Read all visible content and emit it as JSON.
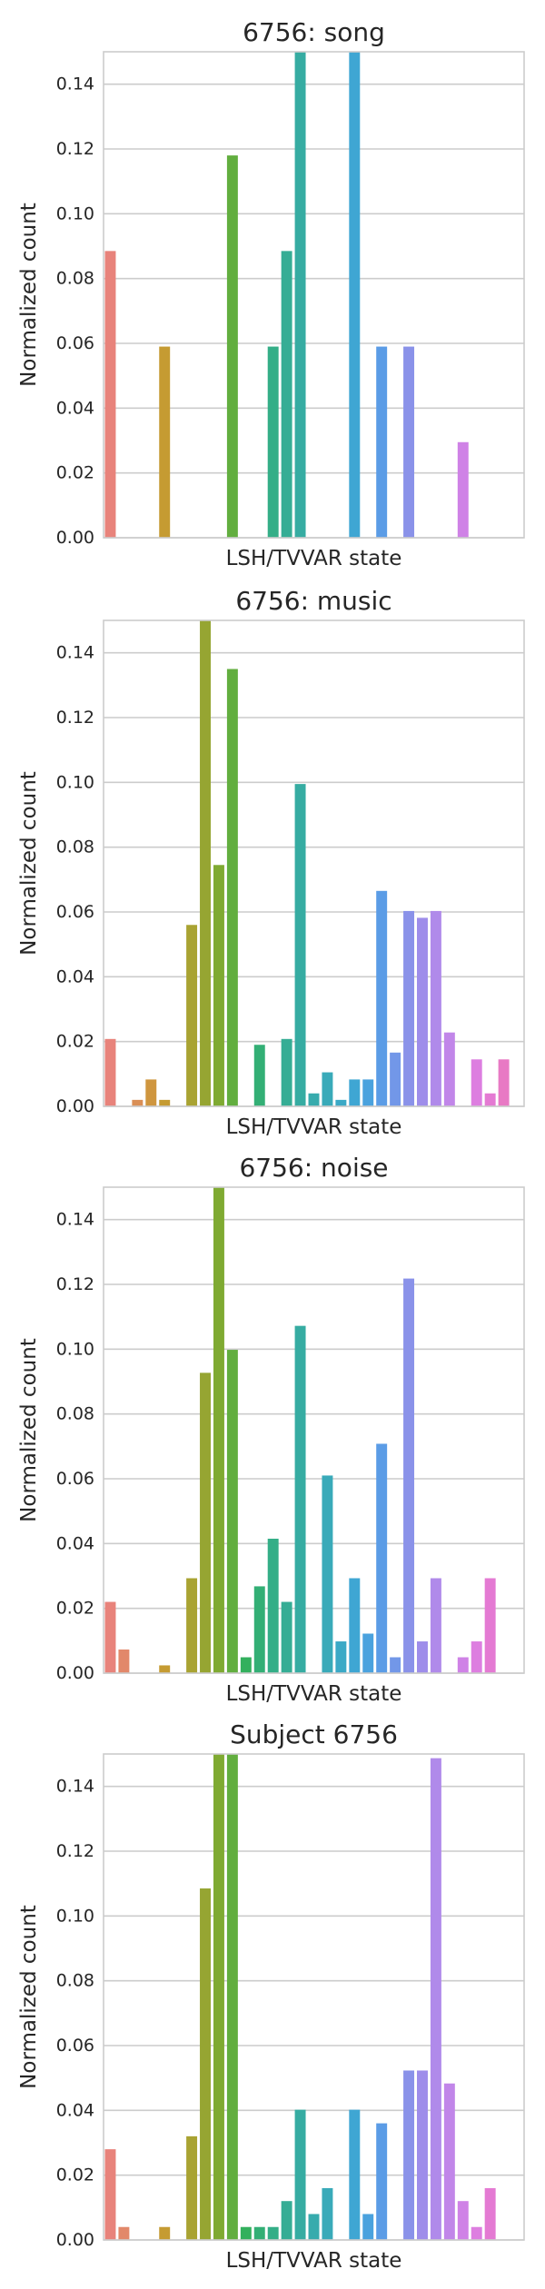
{
  "chart_data": [
    {
      "type": "bar",
      "title": "6756: song",
      "xlabel": "LSH/TVVAR state",
      "ylabel": "Normalized count",
      "ylim": [
        0,
        0.15
      ],
      "yticks": [
        "0.00",
        "0.02",
        "0.04",
        "0.06",
        "0.08",
        "0.10",
        "0.12",
        "0.14"
      ],
      "grid": true,
      "values": [
        0.0885,
        0,
        0,
        0,
        0.059,
        0,
        0,
        0,
        0,
        0.118,
        0,
        0,
        0.059,
        0.0885,
        0.15,
        0,
        0,
        0,
        0.15,
        0,
        0.059,
        0,
        0.059,
        0,
        0,
        0,
        0.0295,
        0,
        0,
        0,
        0
      ]
    },
    {
      "type": "bar",
      "title": "6756: music",
      "xlabel": "LSH/TVVAR state",
      "ylabel": "Normalized count",
      "ylim": [
        0,
        0.15
      ],
      "yticks": [
        "0.00",
        "0.02",
        "0.04",
        "0.06",
        "0.08",
        "0.10",
        "0.12",
        "0.14"
      ],
      "grid": true,
      "values": [
        0.0208,
        0,
        0.002,
        0.0083,
        0.002,
        0,
        0.056,
        0.15,
        0.0745,
        0.135,
        0,
        0.019,
        0,
        0.0208,
        0.0995,
        0.004,
        0.0105,
        0.002,
        0.0083,
        0.0083,
        0.0665,
        0.0166,
        0.0603,
        0.0582,
        0.0603,
        0.0228,
        0,
        0.0145,
        0.004,
        0.0145,
        0
      ]
    },
    {
      "type": "bar",
      "title": "6756: noise",
      "xlabel": "LSH/TVVAR state",
      "ylabel": "Normalized count",
      "ylim": [
        0,
        0.15
      ],
      "yticks": [
        "0.00",
        "0.02",
        "0.04",
        "0.06",
        "0.08",
        "0.10",
        "0.12",
        "0.14"
      ],
      "grid": true,
      "values": [
        0.022,
        0.0073,
        0,
        0,
        0.0024,
        0,
        0.0293,
        0.0927,
        0.15,
        0.0998,
        0.0049,
        0.0268,
        0.0415,
        0.022,
        0.1072,
        0,
        0.061,
        0.0098,
        0.0293,
        0.0122,
        0.0708,
        0.0049,
        0.1218,
        0.0098,
        0.0293,
        0,
        0.0049,
        0.0098,
        0.0293,
        0,
        0
      ]
    },
    {
      "type": "bar",
      "title": "Subject 6756",
      "xlabel": "LSH/TVVAR state",
      "ylabel": "Normalized count",
      "ylim": [
        0,
        0.15
      ],
      "yticks": [
        "0.00",
        "0.02",
        "0.04",
        "0.06",
        "0.08",
        "0.10",
        "0.12",
        "0.14"
      ],
      "grid": true,
      "values": [
        0.028,
        0.004,
        0,
        0,
        0.004,
        0,
        0.032,
        0.1085,
        0.15,
        0.15,
        0.004,
        0.004,
        0.004,
        0.012,
        0.0402,
        0.008,
        0.016,
        0,
        0.0402,
        0.008,
        0.036,
        0,
        0.0523,
        0.0523,
        0.1487,
        0.0483,
        0.012,
        0.004,
        0.016,
        0,
        0
      ]
    }
  ],
  "colors": {
    "palette": [
      "#e8837b",
      "#e2886a",
      "#da8f56",
      "#cf963f",
      "#c59b32",
      "#b89f32",
      "#a9a332",
      "#96a532",
      "#7faa32",
      "#62ae3f",
      "#33b05d",
      "#33af75",
      "#34ae87",
      "#35ad95",
      "#36aca2",
      "#37abad",
      "#39aab9",
      "#3ba9c6",
      "#3fa6d3",
      "#4aa2de",
      "#5b9ce6",
      "#7297e8",
      "#8a92e9",
      "#9e8dea",
      "#b08aea",
      "#c186e9",
      "#cf82e6",
      "#dd7ee0",
      "#e47ad3",
      "#e879c4",
      "#ea79b3"
    ],
    "grid": "#cccccc",
    "axes": "#cccccc",
    "text": "#262626"
  }
}
